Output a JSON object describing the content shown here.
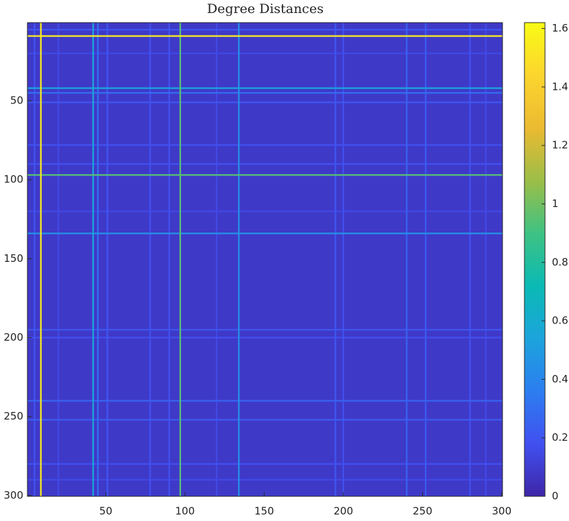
{
  "chart_data": {
    "type": "heatmap",
    "title": "Degree Distances",
    "xlim": [
      0.5,
      300.5
    ],
    "ylim": [
      0.5,
      300.5
    ],
    "xticks": [
      50,
      100,
      150,
      200,
      250,
      300
    ],
    "yticks": [
      50,
      100,
      150,
      200,
      250,
      300
    ],
    "clim": [
      0,
      1.62
    ],
    "cticks": [
      0,
      0.2,
      0.4,
      0.6,
      0.8,
      1,
      1.2,
      1.4,
      1.6
    ],
    "colormap": [
      "#3e26a8",
      "#4150f0",
      "#2c7ef0",
      "#1ca4dc",
      "#0abab4",
      "#3ec283",
      "#9cbe48",
      "#ebba31",
      "#fcd52e",
      "#f9fb15"
    ],
    "background": 0.08,
    "bands": [
      {
        "index": 5,
        "value": 0.2
      },
      {
        "index": 9,
        "value": 1.55
      },
      {
        "index": 20,
        "value": 0.15
      },
      {
        "index": 42,
        "value": 0.55
      },
      {
        "index": 45,
        "value": 0.3
      },
      {
        "index": 51,
        "value": 0.2
      },
      {
        "index": 78,
        "value": 0.18
      },
      {
        "index": 90,
        "value": 0.18
      },
      {
        "index": 97,
        "value": 0.95
      },
      {
        "index": 120,
        "value": 0.15
      },
      {
        "index": 134,
        "value": 0.45
      },
      {
        "index": 195,
        "value": 0.2
      },
      {
        "index": 200,
        "value": 0.18
      },
      {
        "index": 240,
        "value": 0.25
      },
      {
        "index": 252,
        "value": 0.22
      },
      {
        "index": 280,
        "value": 0.18
      },
      {
        "index": 290,
        "value": 0.15
      }
    ]
  }
}
